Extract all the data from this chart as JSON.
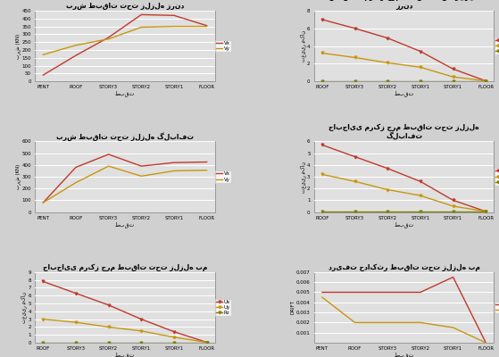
{
  "chart1": {
    "title": "برش طبقات تحت زلزله زرند",
    "xlabel": "طبقت",
    "ylabel": "برش (KN)",
    "xticks": [
      "PENT",
      "ROOF",
      "STORY3",
      "STORY2",
      "STORY1",
      "FLOOR"
    ],
    "vx": [
      40,
      165,
      280,
      425,
      420,
      355
    ],
    "vy": [
      170,
      230,
      270,
      345,
      350,
      350
    ],
    "ylim": [
      0,
      450
    ],
    "yticks": [
      0,
      50,
      100,
      150,
      200,
      250,
      300,
      350,
      400,
      450
    ]
  },
  "chart2": {
    "title": "برش طبقات تحت زلزله گلبافت",
    "xlabel": "طبقت",
    "ylabel": "برش (KN)",
    "xticks": [
      "PENT",
      "ROOF",
      "STORY3",
      "STORY2",
      "STORY1",
      "FLOOR"
    ],
    "vx": [
      80,
      380,
      490,
      390,
      420,
      425
    ],
    "vy": [
      80,
      250,
      390,
      305,
      350,
      355
    ],
    "ylim": [
      0,
      600
    ],
    "yticks": [
      0,
      100,
      200,
      300,
      400,
      500,
      600
    ]
  },
  "chart3": {
    "title": "جابجایی مرکز جرم طبقات تحت زلزله بم",
    "xlabel": "طبقت",
    "ylabel": "تغییر مکان",
    "xticks": [
      "ROOF",
      "STORY3",
      "STORY2",
      "STORY1",
      "STORY1",
      "FLOOR"
    ],
    "ux": [
      7.8,
      6.3,
      4.8,
      3.0,
      1.4,
      0.05
    ],
    "uy": [
      3.0,
      2.6,
      2.0,
      1.5,
      0.7,
      0.05
    ],
    "uz": [
      0.02,
      0.02,
      0.02,
      0.02,
      0.02,
      0.02
    ],
    "ylim": [
      0,
      9
    ],
    "yticks": [
      0,
      1,
      2,
      3,
      4,
      5,
      6,
      7,
      8,
      9
    ]
  },
  "chart4": {
    "title_line1": "جابجایی مرکز جرم طبقات تحت زلزله",
    "title_line2": "زرند",
    "xlabel": "طبقت",
    "ylabel": "تغییر مکان",
    "xticks": [
      "ROOF",
      "STORY3",
      "STORY2",
      "STORY1",
      "STORY1",
      "FLOOR"
    ],
    "ux": [
      7.0,
      6.0,
      4.9,
      3.4,
      1.4,
      0.05
    ],
    "uy": [
      3.2,
      2.7,
      2.1,
      1.6,
      0.5,
      0.05
    ],
    "uz": [
      0.02,
      0.02,
      0.02,
      0.02,
      0.02,
      0.02
    ],
    "ylim": [
      0,
      8
    ],
    "yticks": [
      0,
      2,
      4,
      6,
      8
    ]
  },
  "chart5": {
    "title_line1": "جابجایی مرکز جرم طبقات تحت زلزله",
    "title_line2": "گلبافت",
    "xlabel": "طبقت",
    "ylabel": "تغییر مکان",
    "xticks": [
      "ROOF",
      "STORY3",
      "STORY2",
      "STORY1",
      "STORY1",
      "FLOOR"
    ],
    "ux": [
      5.7,
      4.7,
      3.7,
      2.6,
      1.0,
      0.05
    ],
    "uy": [
      3.2,
      2.6,
      1.9,
      1.4,
      0.5,
      0.05
    ],
    "uz": [
      0.02,
      0.02,
      0.02,
      0.02,
      0.02,
      0.02
    ],
    "ylim": [
      0,
      6
    ],
    "yticks": [
      0,
      1,
      2,
      3,
      4,
      5,
      6
    ]
  },
  "chart6": {
    "title": "دریفت حداکثر طبقات تحت زلزله بم",
    "xlabel": "طبقت",
    "ylabel": "DRIFT",
    "xticks": [
      "PENT",
      "ROOF",
      "STORY3",
      "STORY2",
      "STORY1",
      "FLOOR"
    ],
    "driftx": [
      0.005,
      0.005,
      0.005,
      0.005,
      0.0065,
      0.0
    ],
    "drifty": [
      0.0045,
      0.002,
      0.002,
      0.002,
      0.0015,
      0.0
    ],
    "ylim": [
      0,
      0.007
    ],
    "yticks": [
      0.001,
      0.002,
      0.003,
      0.004,
      0.005,
      0.006,
      0.007
    ]
  },
  "color_vx": "#c0392b",
  "color_vy": "#c8960c",
  "color_ux": "#c0392b",
  "color_uy": "#c8960c",
  "color_uz": "#808000",
  "color_driftx": "#c0392b",
  "color_drifty": "#c8960c",
  "bg_color": "#e0e0e0",
  "page_bg": "#d0d0d0",
  "panel_bg": "#ffffff"
}
